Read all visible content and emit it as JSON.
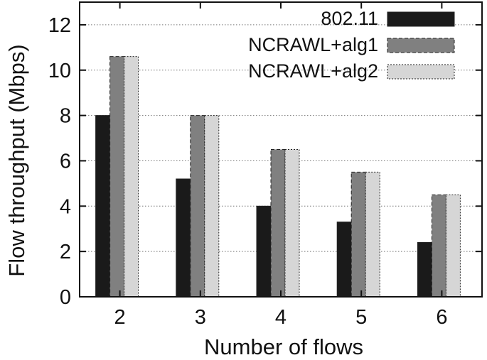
{
  "chart_data": {
    "type": "bar",
    "xlabel": "Number of flows",
    "ylabel": "Flow throughput (Mbps)",
    "categories": [
      "2",
      "3",
      "4",
      "5",
      "6"
    ],
    "ylim": [
      0,
      13
    ],
    "yticks": [
      "0",
      "2",
      "4",
      "6",
      "8",
      "10",
      "12"
    ],
    "grid": "horizontal dotted",
    "legend_position": "top-right",
    "series": [
      {
        "name": "802.11",
        "values": [
          8.0,
          5.2,
          4.0,
          3.3,
          2.4
        ],
        "color": "#1a1a1a",
        "border": "solid"
      },
      {
        "name": "NCRAWL+alg1",
        "values": [
          10.6,
          8.0,
          6.5,
          5.5,
          4.5
        ],
        "color": "#808080",
        "border": "dashed"
      },
      {
        "name": "NCRAWL+alg2",
        "values": [
          10.6,
          8.0,
          6.5,
          5.5,
          4.5
        ],
        "color": "#d6d6d6",
        "border": "dotted"
      }
    ]
  }
}
